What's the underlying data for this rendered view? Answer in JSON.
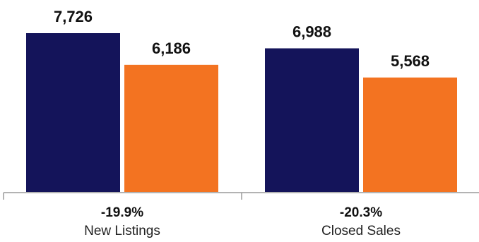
{
  "chart_data": {
    "type": "bar",
    "categories": [
      "New Listings",
      "Closed Sales"
    ],
    "change_labels": [
      "-19.9%",
      "-20.3%"
    ],
    "series": [
      {
        "values": [
          7726,
          6988
        ],
        "color": "#14145a"
      },
      {
        "values": [
          6186,
          5568
        ],
        "color": "#f37321"
      }
    ],
    "value_labels": [
      [
        "7,726",
        "6,988"
      ],
      [
        "6,186",
        "5,568"
      ]
    ],
    "ylim": [
      0,
      7726
    ],
    "grid": false,
    "legend": "none"
  }
}
